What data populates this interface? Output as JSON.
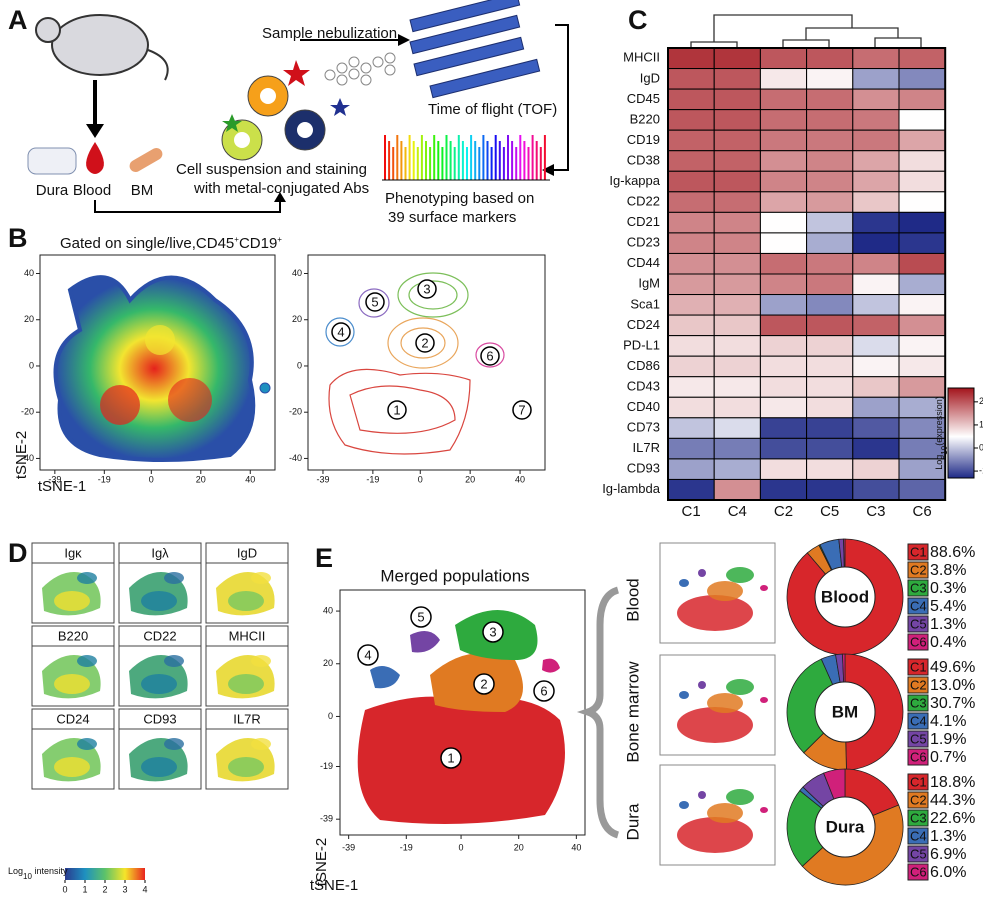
{
  "panel_a": {
    "label": "A",
    "nebulization": "Sample nebulization",
    "tof": "Time of flight (TOF)",
    "staining": [
      "Cell suspension and staining",
      "with metal-conjugated Abs"
    ],
    "phenotyping": [
      "Phenotyping based on",
      "39 surface markers"
    ],
    "tissues": [
      "Dura",
      "Blood",
      "BM"
    ]
  },
  "panel_b": {
    "label": "B",
    "title": [
      "Gated on single/live,CD45",
      "+",
      "CD19",
      "+"
    ],
    "xlabel": "tSNE-1",
    "ylabel": "tSNE-2",
    "xticks": [
      -39,
      -19,
      0,
      20,
      40
    ],
    "yticks": [
      40,
      20,
      0,
      -20,
      -40
    ],
    "xlim": [
      -45,
      50
    ],
    "ylim": [
      -45,
      48
    ],
    "clusters": [
      "1",
      "2",
      "3",
      "4",
      "5",
      "6",
      "7"
    ]
  },
  "panel_c": {
    "label": "C",
    "type": "heatmap",
    "rows": [
      "MHCII",
      "IgD",
      "CD45",
      "B220",
      "CD19",
      "CD38",
      "Ig-kappa",
      "CD22",
      "CD21",
      "CD23",
      "CD44",
      "IgM",
      "Sca1",
      "CD24",
      "PD-L1",
      "CD86",
      "CD43",
      "CD40",
      "CD73",
      "IL7R",
      "CD93",
      "Ig-lambda"
    ],
    "columns": [
      "C1",
      "C4",
      "C2",
      "C5",
      "C3",
      "C6"
    ],
    "values": [
      [
        2.3,
        2.3,
        2.0,
        2.0,
        1.8,
        1.9
      ],
      [
        2.0,
        2.0,
        0.7,
        0.6,
        -0.3,
        -0.5
      ],
      [
        2.0,
        2.0,
        1.8,
        1.8,
        1.5,
        1.6
      ],
      [
        2.0,
        2.0,
        1.8,
        1.8,
        1.7,
        0.5
      ],
      [
        1.9,
        1.9,
        1.7,
        1.7,
        1.7,
        1.3
      ],
      [
        1.9,
        1.9,
        1.5,
        1.6,
        1.3,
        0.8
      ],
      [
        2.0,
        2.0,
        1.6,
        1.6,
        1.3,
        0.8
      ],
      [
        1.8,
        1.8,
        1.3,
        1.4,
        1.0,
        0.5
      ],
      [
        1.6,
        1.6,
        0.5,
        0.0,
        -1.2,
        -1.3
      ],
      [
        1.6,
        1.6,
        0.5,
        -0.2,
        -1.3,
        -1.2
      ],
      [
        1.5,
        1.5,
        1.8,
        1.7,
        1.6,
        2.1
      ],
      [
        1.4,
        1.4,
        1.6,
        1.7,
        0.6,
        -0.2
      ],
      [
        1.2,
        1.2,
        -0.3,
        -0.5,
        0.0,
        0.6
      ],
      [
        1.0,
        1.0,
        2.0,
        2.0,
        1.9,
        1.5
      ],
      [
        0.8,
        0.8,
        0.9,
        0.9,
        0.2,
        0.6
      ],
      [
        0.9,
        0.9,
        0.8,
        0.8,
        0.6,
        0.7
      ],
      [
        0.7,
        0.7,
        0.8,
        0.8,
        1.0,
        1.4
      ],
      [
        0.8,
        0.8,
        0.7,
        0.8,
        -0.3,
        -0.2
      ],
      [
        0.0,
        0.2,
        -1.1,
        -1.1,
        -0.9,
        -0.5
      ],
      [
        -0.6,
        -0.6,
        -1.0,
        -1.0,
        -1.2,
        -0.6
      ],
      [
        -0.3,
        -0.2,
        0.8,
        0.8,
        0.9,
        -0.3
      ],
      [
        -1.2,
        1.5,
        -1.2,
        -1.2,
        -1.0,
        -0.8
      ]
    ],
    "zlim": [
      -1.3,
      2.6
    ],
    "zticks": [
      2,
      1,
      0,
      -1
    ],
    "colorbar_label": [
      "Log",
      "10",
      "(expression)"
    ]
  },
  "panel_d": {
    "label": "D",
    "markers": [
      "Igκ",
      "Igλ",
      "IgD",
      "B220",
      "CD22",
      "MHCII",
      "CD24",
      "CD93",
      "IL7R"
    ],
    "colorbar_label": [
      "Log",
      "10",
      " intensity"
    ],
    "colorbar_ticks": [
      0,
      1,
      2,
      3,
      4
    ],
    "colorbar_lim": [
      0,
      4
    ]
  },
  "panel_e": {
    "label": "E",
    "title": "Merged populations",
    "xlabel": "tSNE-1",
    "ylabel": "tSNE-2",
    "xticks": [
      -39,
      -19,
      0,
      20,
      40
    ],
    "yticks": [
      40,
      20,
      0,
      -19,
      -39
    ],
    "xlim": [
      -42,
      43
    ],
    "ylim": [
      -45,
      48
    ],
    "clusters": [
      "1",
      "2",
      "3",
      "4",
      "5",
      "6"
    ],
    "tissues": [
      "Blood",
      "Bone marrow",
      "Dura"
    ],
    "colors": [
      "#d7262b",
      "#e07a22",
      "#2eaa3e",
      "#3a6db5",
      "#7445a4",
      "#d0207a"
    ],
    "donuts": [
      {
        "center": "Blood",
        "categories": [
          "C1",
          "C2",
          "C3",
          "C4",
          "C5",
          "C6"
        ],
        "values": [
          88.6,
          3.8,
          0.3,
          5.4,
          1.3,
          0.4
        ],
        "value_labels": [
          "88.6%",
          "3.8%",
          "0.3%",
          "5.4%",
          "1.3%",
          "0.4%"
        ]
      },
      {
        "center": "BM",
        "categories": [
          "C1",
          "C2",
          "C3",
          "C4",
          "C5",
          "C6"
        ],
        "values": [
          49.6,
          13.0,
          30.7,
          4.1,
          1.9,
          0.7
        ],
        "value_labels": [
          "49.6%",
          "13.0%",
          "30.7%",
          "4.1%",
          "1.9%",
          "0.7%"
        ]
      },
      {
        "center": "Dura",
        "categories": [
          "C1",
          "C2",
          "C3",
          "C4",
          "C5",
          "C6"
        ],
        "values": [
          18.8,
          44.3,
          22.6,
          1.3,
          6.9,
          6.0
        ],
        "value_labels": [
          "18.8%",
          "44.3%",
          "22.6%",
          "1.3%",
          "6.9%",
          "6.0%"
        ]
      }
    ]
  }
}
